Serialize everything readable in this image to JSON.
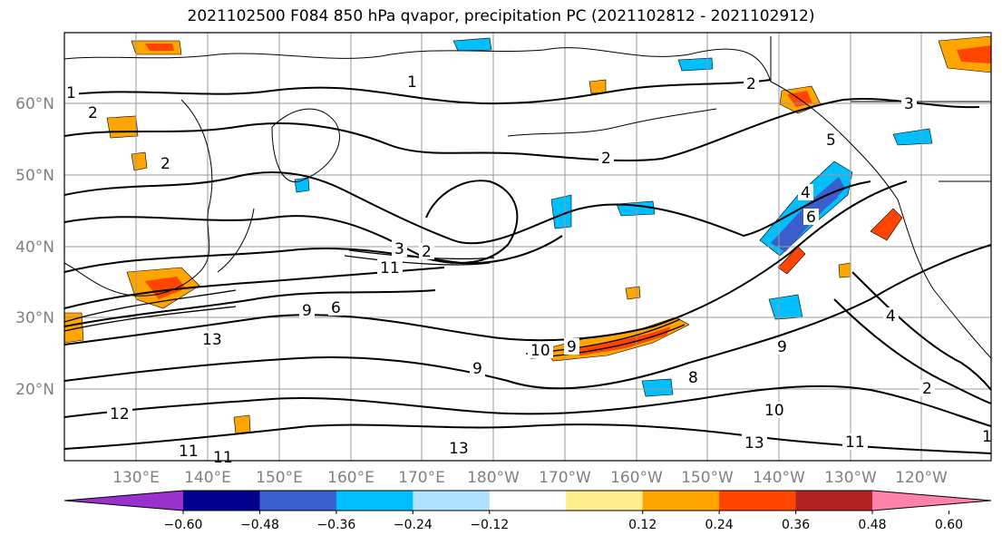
{
  "title": "2021102500 F084 850 hPa qvapor, precipitation PC (2021102812 - 2021102912)",
  "lat_labels": [
    "60°N",
    "50°N",
    "40°N",
    "30°N",
    "20°N"
  ],
  "lon_labels": [
    "130°E",
    "140°E",
    "150°E",
    "160°E",
    "170°E",
    "180°W",
    "170°W",
    "160°W",
    "150°W",
    "140°W",
    "130°W",
    "120°W"
  ],
  "colorbar": {
    "colors": [
      "#9932CC",
      "#00008B",
      "#3A5FCD",
      "#00BFFF",
      "#B0E2FF",
      "#FFFFFF",
      "#FFEC8B",
      "#FFA500",
      "#FF4500",
      "#B22222",
      "#FF82AB"
    ],
    "tick_labels": [
      "−0.60",
      "−0.48",
      "−0.36",
      "−0.24",
      "−0.12",
      "0.12",
      "0.24",
      "0.36",
      "0.48",
      "0.60"
    ]
  },
  "contour_labels": [
    "1",
    "2",
    "2",
    "2",
    "2",
    "1",
    "3",
    "4",
    "5",
    "6",
    "3",
    "2",
    "11",
    "9",
    "6",
    "9",
    "10",
    "9",
    "8",
    "10",
    "9",
    "13",
    "13",
    "12",
    "11",
    "13",
    "11",
    "1",
    "2",
    "4",
    "11"
  ]
}
